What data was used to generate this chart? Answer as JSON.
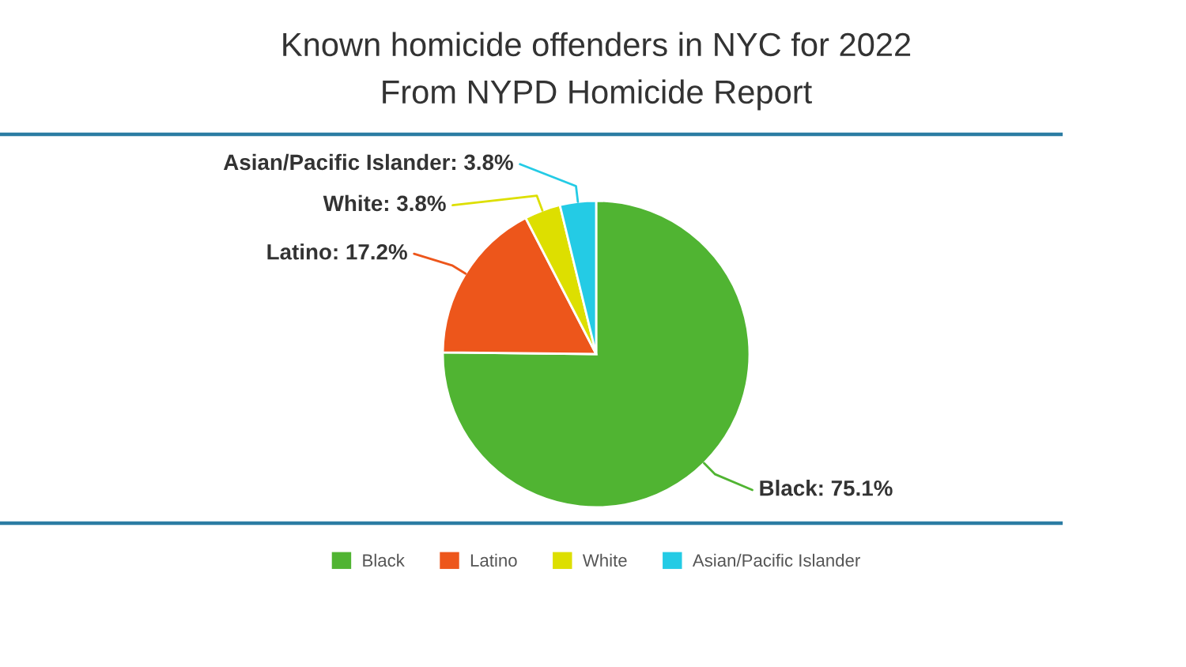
{
  "chart_data": {
    "type": "pie",
    "title": "Known homicide offenders in NYC for 2022",
    "subtitle": "From NYPD Homicide Report",
    "categories": [
      "Black",
      "Latino",
      "White",
      "Asian/Pacific Islander"
    ],
    "values": [
      75.1,
      17.2,
      3.8,
      3.8
    ],
    "colors": [
      "#50b432",
      "#ed561b",
      "#dddf00",
      "#24cbe5"
    ],
    "value_labels": [
      "Black: 75.1%",
      "Latino: 17.2%",
      "White: 3.8%",
      "Asian/Pacific Islander: 3.8%"
    ],
    "legend": "bottom"
  }
}
